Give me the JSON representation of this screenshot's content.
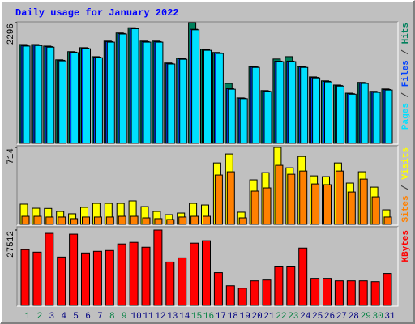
{
  "chart_data": [
    {
      "type": "bar",
      "title": "Daily usage for January 2022",
      "ylim": [
        0,
        2296
      ],
      "yticks": [
        2296
      ],
      "legend_separator": " / ",
      "series": [
        {
          "name": "Hits",
          "color": "#00805c",
          "values": [
            1880,
            1880,
            1850,
            1590,
            1745,
            1820,
            1650,
            1945,
            2100,
            2200,
            1945,
            1945,
            1530,
            1620,
            2296,
            1790,
            1730,
            1140,
            865,
            1465,
            1005,
            1605,
            1650,
            1465,
            1265,
            1190,
            1110,
            955,
            1160,
            990,
            1035
          ]
        },
        {
          "name": "Files",
          "color": "#0040ff",
          "values": [
            1860,
            1870,
            1840,
            1580,
            1735,
            1810,
            1640,
            1935,
            2090,
            2190,
            1935,
            1935,
            1520,
            1610,
            2170,
            1780,
            1720,
            1040,
            858,
            1455,
            995,
            1565,
            1565,
            1455,
            1255,
            1180,
            1100,
            945,
            1150,
            980,
            1025
          ]
        },
        {
          "name": "Pages",
          "color": "#00e0ff",
          "values": [
            1850,
            1860,
            1830,
            1570,
            1725,
            1800,
            1630,
            1925,
            2080,
            2180,
            1925,
            1925,
            1510,
            1600,
            2160,
            1770,
            1710,
            1030,
            850,
            1445,
            985,
            1555,
            1555,
            1445,
            1245,
            1170,
            1090,
            935,
            1140,
            970,
            1015
          ]
        }
      ]
    },
    {
      "type": "bar",
      "ylim": [
        0,
        714
      ],
      "yticks": [
        714
      ],
      "legend_separator": " / ",
      "series": [
        {
          "name": "Visits",
          "color": "#ffff00",
          "values": [
            188,
            150,
            148,
            120,
            98,
            158,
            195,
            195,
            195,
            218,
            165,
            120,
            90,
            105,
            195,
            180,
            570,
            653,
            113,
            413,
            480,
            714,
            525,
            630,
            450,
            443,
            570,
            383,
            488,
            345,
            135
          ]
        },
        {
          "name": "Sites",
          "color": "#ff8000",
          "values": [
            75,
            75,
            68,
            68,
            53,
            68,
            68,
            68,
            75,
            75,
            60,
            53,
            45,
            68,
            75,
            75,
            458,
            488,
            60,
            308,
            338,
            548,
            465,
            495,
            375,
            368,
            495,
            300,
            420,
            255,
            68
          ]
        }
      ]
    },
    {
      "type": "bar",
      "ylim": [
        0,
        27512
      ],
      "yticks": [
        27512
      ],
      "categories": [
        "1",
        "2",
        "3",
        "4",
        "5",
        "6",
        "7",
        "8",
        "9",
        "10",
        "11",
        "12",
        "13",
        "14",
        "15",
        "16",
        "17",
        "18",
        "19",
        "20",
        "21",
        "22",
        "23",
        "24",
        "25",
        "26",
        "27",
        "28",
        "29",
        "30",
        "31"
      ],
      "label_colors": [
        "#008040",
        "#008040",
        "#000080",
        "#000080",
        "#000080",
        "#000080",
        "#000080",
        "#008040",
        "#008040",
        "#000080",
        "#000080",
        "#000080",
        "#000080",
        "#000080",
        "#008040",
        "#008040",
        "#000080",
        "#000080",
        "#000080",
        "#000080",
        "#000080",
        "#008040",
        "#008040",
        "#000080",
        "#000080",
        "#000080",
        "#000080",
        "#000080",
        "#008040",
        "#008040",
        "#000080"
      ],
      "series": [
        {
          "name": "KBytes",
          "color": "#ff0000",
          "values": [
            20332,
            19435,
            26311,
            17641,
            26013,
            19136,
            19734,
            20033,
            22425,
            23023,
            21229,
            27512,
            15847,
            17342,
            22724,
            23621,
            11960,
            7176,
            6279,
            8970,
            9269,
            14053,
            14053,
            20930,
            9867,
            9867,
            8970,
            8970,
            8970,
            8671,
            11661
          ]
        }
      ]
    }
  ]
}
